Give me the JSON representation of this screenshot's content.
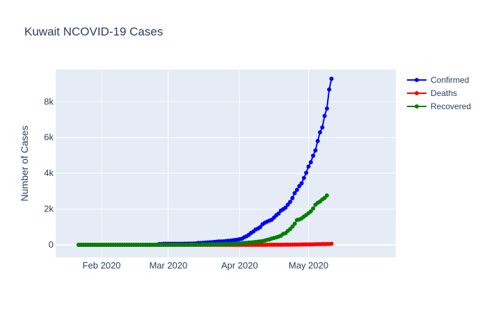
{
  "chart_data": {
    "type": "line",
    "title": "Kuwait NCOVID-19 Cases",
    "xlabel": "",
    "ylabel": "Number of Cases",
    "x_start": "2020-01-22",
    "x_end": "2020-05-31",
    "xlim": [
      "2020-01-12",
      "2020-06-08"
    ],
    "ylim": [
      -700,
      9800
    ],
    "yticks": [
      0,
      2000,
      4000,
      6000,
      8000
    ],
    "ytick_labels": [
      "0",
      "2k",
      "4k",
      "6k",
      "8k"
    ],
    "xticks": [
      "2020-02-01",
      "2020-03-01",
      "2020-04-01",
      "2020-05-01"
    ],
    "xtick_labels": [
      "Feb 2020",
      "Mar 2020",
      "Apr 2020",
      "May 2020"
    ],
    "legend_position": "top-right",
    "grid": true,
    "series": [
      {
        "name": "Confirmed",
        "color": "#0000ff",
        "values": [
          0,
          0,
          0,
          0,
          0,
          0,
          0,
          0,
          0,
          0,
          0,
          0,
          0,
          0,
          0,
          0,
          0,
          0,
          0,
          0,
          0,
          0,
          0,
          0,
          0,
          0,
          0,
          0,
          0,
          0,
          0,
          0,
          0,
          0,
          0,
          43,
          45,
          56,
          56,
          56,
          56,
          56,
          56,
          56,
          58,
          58,
          61,
          64,
          69,
          69,
          72,
          80,
          100,
          104,
          112,
          123,
          130,
          142,
          148,
          159,
          176,
          189,
          191,
          195,
          208,
          225,
          235,
          255,
          266,
          289,
          317,
          342,
          417,
          479,
          556,
          665,
          743,
          855,
          910,
          993,
          1154,
          1234,
          1300,
          1355,
          1405,
          1524,
          1658,
          1751,
          1915,
          1995,
          2080,
          2248,
          2399,
          2614,
          2892,
          3075,
          3288,
          3440,
          3740,
          4024,
          4377,
          4619,
          4983,
          5278,
          5804,
          6289,
          6567,
          7208,
          7623,
          8688,
          9286
        ]
      },
      {
        "name": "Deaths",
        "color": "#ff0000",
        "values": [
          0,
          0,
          0,
          0,
          0,
          0,
          0,
          0,
          0,
          0,
          0,
          0,
          0,
          0,
          0,
          0,
          0,
          0,
          0,
          0,
          0,
          0,
          0,
          0,
          0,
          0,
          0,
          0,
          0,
          0,
          0,
          0,
          0,
          0,
          0,
          0,
          0,
          0,
          0,
          0,
          0,
          0,
          0,
          0,
          0,
          0,
          0,
          0,
          0,
          0,
          0,
          0,
          0,
          0,
          0,
          0,
          0,
          0,
          0,
          0,
          0,
          0,
          0,
          0,
          0,
          0,
          0,
          0,
          0,
          0,
          1,
          1,
          1,
          1,
          1,
          1,
          1,
          1,
          1,
          1,
          1,
          1,
          2,
          3,
          3,
          3,
          3,
          5,
          6,
          7,
          9,
          9,
          10,
          11,
          13,
          14,
          15,
          19,
          22,
          23,
          24,
          26,
          30,
          33,
          38,
          40,
          42,
          44,
          47,
          49,
          58
        ]
      },
      {
        "name": "Recovered",
        "color": "#008000",
        "values": [
          0,
          0,
          0,
          0,
          0,
          0,
          0,
          0,
          0,
          0,
          0,
          0,
          0,
          0,
          0,
          0,
          0,
          0,
          0,
          0,
          0,
          0,
          0,
          0,
          0,
          0,
          0,
          0,
          0,
          0,
          0,
          0,
          0,
          0,
          0,
          0,
          0,
          0,
          0,
          0,
          0,
          0,
          0,
          0,
          1,
          1,
          2,
          3,
          5,
          9,
          9,
          12,
          13,
          15,
          18,
          22,
          23,
          26,
          27,
          30,
          30,
          34,
          35,
          41,
          44,
          49,
          52,
          58,
          67,
          72,
          82,
          93,
          102,
          114,
          124,
          133,
          146,
          159,
          175,
          195,
          211,
          240,
          277,
          301,
          350,
          386,
          420,
          460,
          512,
          612,
          650,
          780,
          880,
          1020,
          1180,
          1390,
          1420,
          1480,
          1580,
          1670,
          1770,
          1870,
          2030,
          2240,
          2350,
          2420,
          2540,
          2620,
          2760
        ]
      }
    ]
  }
}
